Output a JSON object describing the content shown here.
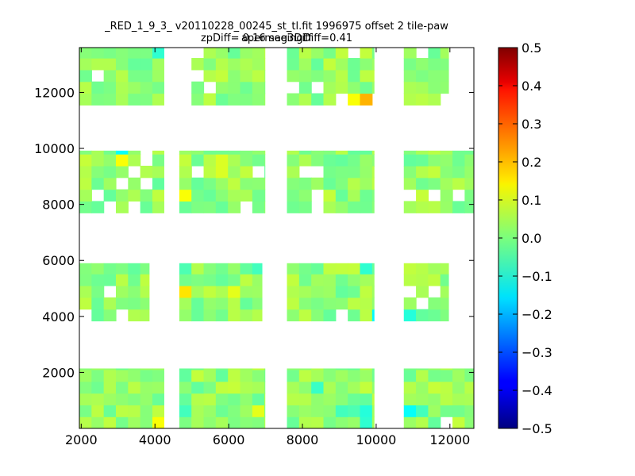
{
  "title_line1": "_RED_1_9_3_ v20110228_00245_st_tl.fit 1996975 offset 2 tile-paw apermag3Diff",
  "title_line2": "zpDiff= 0.16 seeingDiff=0.41",
  "chart_data": {
    "type": "heatmap",
    "xlim": [
      1950,
      12650
    ],
    "ylim": [
      0,
      13600
    ],
    "x_ticks": [
      2000,
      4000,
      6000,
      8000,
      10000,
      12000
    ],
    "y_ticks": [
      2000,
      4000,
      6000,
      8000,
      10000,
      12000
    ],
    "colorbar": {
      "colormap": "jet",
      "vmin": -0.5,
      "vmax": 0.5,
      "ticks": [
        0.5,
        0.4,
        0.3,
        0.2,
        0.1,
        0.0,
        -0.1,
        -0.2,
        -0.3,
        -0.4,
        -0.5
      ],
      "tick_labels": [
        "0.5",
        "0.4",
        "0.3",
        "0.2",
        "0.1",
        "0.0",
        "−0.1",
        "−0.2",
        "−0.3",
        "−0.4",
        "−0.5"
      ]
    },
    "cell_size": [
      330,
      420
    ],
    "bands": [
      {
        "y_range": [
          0,
          2140
        ],
        "x_blocks": [
          [
            1950,
            4240
          ],
          [
            4660,
            6980
          ],
          [
            7580,
            9940
          ],
          [
            10750,
            12630
          ]
        ]
      },
      {
        "y_range": [
          3840,
          5900
        ],
        "x_blocks": [
          [
            1950,
            3840
          ],
          [
            4660,
            6900
          ],
          [
            7580,
            9940
          ],
          [
            10750,
            11960
          ]
        ]
      },
      {
        "y_range": [
          7700,
          9920
        ],
        "x_blocks": [
          [
            1950,
            4240
          ],
          [
            4660,
            6980
          ],
          [
            7580,
            9940
          ],
          [
            10750,
            12630
          ]
        ]
      },
      {
        "y_range": [
          11550,
          13600
        ],
        "x_blocks": [
          [
            1950,
            4240
          ],
          [
            4990,
            6980
          ],
          [
            7580,
            9940
          ],
          [
            10750,
            11960
          ]
        ]
      }
    ],
    "holes": [
      [
        2130,
        4030
      ],
      [
        3230,
        4030
      ],
      [
        2770,
        4900
      ],
      [
        4320,
        1150
      ],
      [
        4320,
        250
      ],
      [
        10600,
        250
      ],
      [
        11900,
        200
      ],
      [
        10450,
        950
      ],
      [
        11230,
        4500
      ],
      [
        10760,
        5000
      ],
      [
        11660,
        5000
      ],
      [
        9000,
        3950
      ],
      [
        6690,
        9300
      ],
      [
        5160,
        9300
      ],
      [
        3460,
        9300
      ],
      [
        8080,
        9220
      ],
      [
        8440,
        9220
      ],
      [
        3000,
        8650
      ],
      [
        3850,
        8700
      ],
      [
        2500,
        8400
      ],
      [
        10930,
        8350
      ],
      [
        11700,
        8250
      ],
      [
        12150,
        8450
      ],
      [
        2500,
        12450
      ],
      [
        6500,
        8100
      ],
      [
        3480,
        8100
      ],
      [
        2840,
        8100
      ],
      [
        8440,
        8120
      ],
      [
        9080,
        11700
      ],
      [
        10000,
        11700
      ],
      [
        4700,
        11900
      ],
      [
        5100,
        12400
      ],
      [
        5550,
        12300
      ],
      [
        7700,
        12350
      ],
      [
        8400,
        12300
      ],
      [
        9500,
        13500
      ],
      [
        4400,
        13400
      ],
      [
        11800,
        11900
      ],
      [
        12200,
        11900
      ],
      [
        12400,
        12700
      ],
      [
        10650,
        13500
      ],
      [
        11300,
        13500
      ],
      [
        5000,
        13400
      ],
      [
        3700,
        9800
      ]
    ],
    "special_cells": [
      [
        4160,
        13550,
        -0.08
      ],
      [
        3070,
        9820,
        -0.12
      ],
      [
        9460,
        11700,
        0.12
      ],
      [
        9830,
        11700,
        0.2
      ],
      [
        9940,
        3980,
        -0.13
      ],
      [
        9850,
        5840,
        -0.08
      ],
      [
        8470,
        1620,
        -0.07
      ],
      [
        9080,
        490,
        -0.06
      ],
      [
        9500,
        490,
        -0.05
      ],
      [
        9840,
        490,
        -0.09
      ],
      [
        9840,
        190,
        -0.08
      ],
      [
        10960,
        490,
        -0.12
      ],
      [
        11300,
        490,
        -0.06
      ],
      [
        11000,
        3980,
        -0.09
      ],
      [
        4160,
        210,
        0.12
      ],
      [
        4770,
        490,
        -0.06
      ],
      [
        4770,
        8470,
        0.12
      ],
      [
        4770,
        5840,
        -0.05
      ],
      [
        4770,
        5060,
        0.15
      ],
      [
        6650,
        5840,
        -0.06
      ],
      [
        3070,
        9470,
        0.12
      ],
      [
        6840,
        630,
        0.1
      ],
      [
        5930,
        9470,
        0.09
      ],
      [
        2480,
        8470,
        0.09
      ],
      [
        6160,
        4910,
        0.1
      ],
      [
        5850,
        9200,
        0.09
      ]
    ],
    "random_seed": 20110228,
    "value_spread": [
      -0.03,
      0.07
    ]
  }
}
